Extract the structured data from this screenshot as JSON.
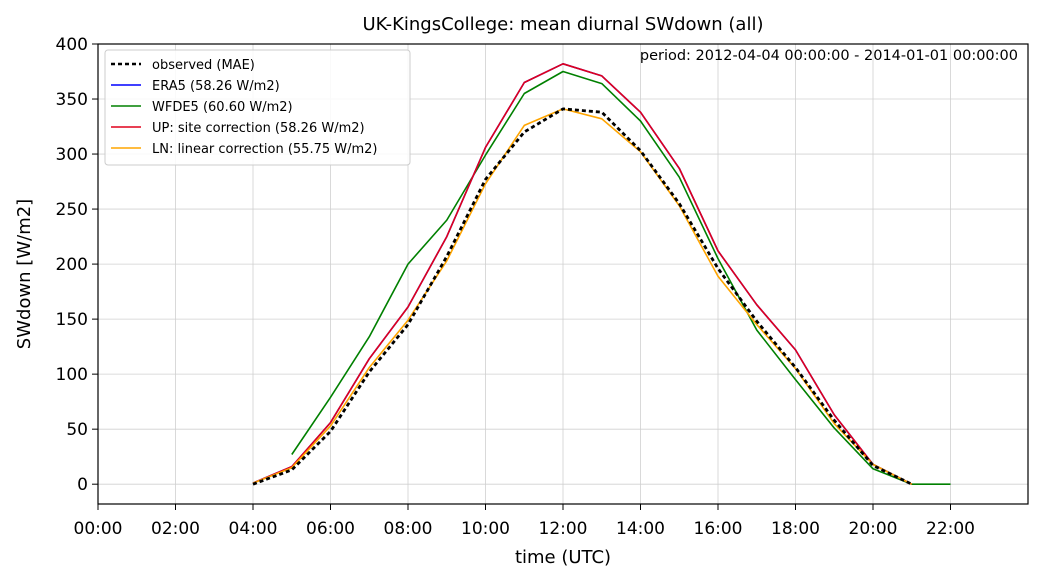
{
  "chart_data": {
    "type": "line",
    "title": "UK-KingsCollege: mean diurnal SWdown (all)",
    "xlabel": "time (UTC)",
    "ylabel": "SWdown [W/m2]",
    "annotation": "period: 2012-04-04 00:00:00 - 2014-01-01 00:00:00",
    "xlim": [
      0,
      24
    ],
    "ylim": [
      -18,
      400
    ],
    "x_ticks": [
      0,
      2,
      4,
      6,
      8,
      10,
      12,
      14,
      16,
      18,
      20,
      22
    ],
    "x_tick_labels": [
      "00:00",
      "02:00",
      "04:00",
      "06:00",
      "08:00",
      "10:00",
      "12:00",
      "14:00",
      "16:00",
      "18:00",
      "20:00",
      "22:00"
    ],
    "y_ticks": [
      0,
      50,
      100,
      150,
      200,
      250,
      300,
      350,
      400
    ],
    "y_tick_labels": [
      "0",
      "50",
      "100",
      "150",
      "200",
      "250",
      "300",
      "350",
      "400"
    ],
    "grid": true,
    "legend_position": "top-left",
    "series": [
      {
        "name": "observed (MAE)",
        "color": "#000000",
        "style": "dotted",
        "x": [
          4,
          5,
          6,
          7,
          8,
          9,
          10,
          11,
          12,
          13,
          14,
          15,
          16,
          17,
          18,
          19,
          20,
          21
        ],
        "y": [
          0,
          13,
          48,
          102,
          145,
          207,
          277,
          320,
          341,
          338,
          303,
          255,
          196,
          148,
          106,
          58,
          17,
          0
        ]
      },
      {
        "name": "ERA5 (58.26 W/m2)",
        "color": "#0000ff",
        "style": "solid",
        "x": [
          4,
          5,
          6,
          7,
          8,
          9,
          10,
          11,
          12,
          13,
          14,
          15,
          16,
          17,
          18,
          19,
          20,
          21
        ],
        "y": [
          1,
          16,
          56,
          114,
          161,
          225,
          306,
          365,
          382,
          371,
          338,
          287,
          212,
          163,
          122,
          63,
          18,
          0
        ]
      },
      {
        "name": "WFDE5 (60.60 W/m2)",
        "color": "#008000",
        "style": "solid",
        "x": [
          5,
          6,
          7,
          8,
          9,
          10,
          11,
          12,
          13,
          14,
          15,
          16,
          17,
          18,
          19,
          20,
          21,
          22
        ],
        "y": [
          27,
          79,
          134,
          200,
          240,
          299,
          355,
          375,
          364,
          330,
          279,
          205,
          140,
          95,
          51,
          14,
          0,
          0
        ]
      },
      {
        "name": "UP: site correction (58.26 W/m2)",
        "color": "#e0001b",
        "style": "solid",
        "x": [
          4,
          5,
          6,
          7,
          8,
          9,
          10,
          11,
          12,
          13,
          14,
          15,
          16,
          17,
          18,
          19,
          20,
          21
        ],
        "y": [
          1,
          16,
          56,
          114,
          161,
          225,
          306,
          365,
          382,
          371,
          338,
          287,
          212,
          163,
          122,
          63,
          18,
          0
        ]
      },
      {
        "name": "LN: linear correction (55.75 W/m2)",
        "color": "#ffa500",
        "style": "solid",
        "x": [
          4,
          5,
          6,
          7,
          8,
          9,
          10,
          11,
          12,
          13,
          14,
          15,
          16,
          17,
          18,
          19,
          20,
          21
        ],
        "y": [
          1,
          15,
          53,
          106,
          149,
          203,
          273,
          326,
          341,
          332,
          302,
          253,
          189,
          145,
          105,
          55,
          18,
          0
        ]
      }
    ]
  }
}
